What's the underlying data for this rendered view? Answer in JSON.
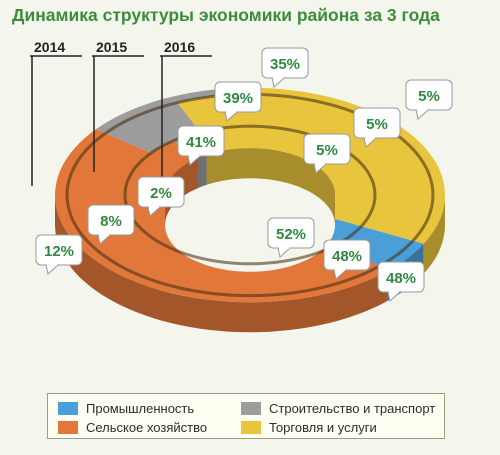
{
  "title": "Динамика структуры экономики района за 3 года",
  "colors": {
    "industry": "#4a9fd8",
    "agriculture": "#e2773a",
    "construction": "#9c9c9c",
    "trade": "#e9c43d",
    "label_text": "#2f8a3f",
    "title": "#3b8d3b"
  },
  "chart_data": {
    "type": "pie",
    "subtype": "concentric-3d-donut",
    "title": "Динамика структуры экономики района за 3 года",
    "categories": [
      "Промышленность",
      "Сельское хозяйство",
      "Строительство и транспорт",
      "Торговля и услуги"
    ],
    "series": [
      {
        "name": "2014",
        "values": [
          5,
          48,
          12,
          35
        ]
      },
      {
        "name": "2015",
        "values": [
          5,
          48,
          8,
          39
        ]
      },
      {
        "name": "2016",
        "values": [
          5,
          52,
          2,
          41
        ]
      }
    ],
    "legend_position": "bottom"
  },
  "labels": {
    "trade": [
      "35%",
      "39%",
      "41%"
    ],
    "industry": [
      "5%",
      "5%",
      "5%"
    ],
    "agriculture": [
      "48%",
      "48%",
      "52%"
    ],
    "construction": [
      "12%",
      "8%",
      "2%"
    ]
  },
  "year_labels": [
    "2014",
    "2015",
    "2016"
  ],
  "legend": [
    {
      "label": "Промышленность",
      "color_key": "industry"
    },
    {
      "label": "Строительство и транспорт",
      "color_key": "construction"
    },
    {
      "label": "Сельское хозяйство",
      "color_key": "agriculture"
    },
    {
      "label": "Торговля и услуги",
      "color_key": "trade"
    }
  ]
}
